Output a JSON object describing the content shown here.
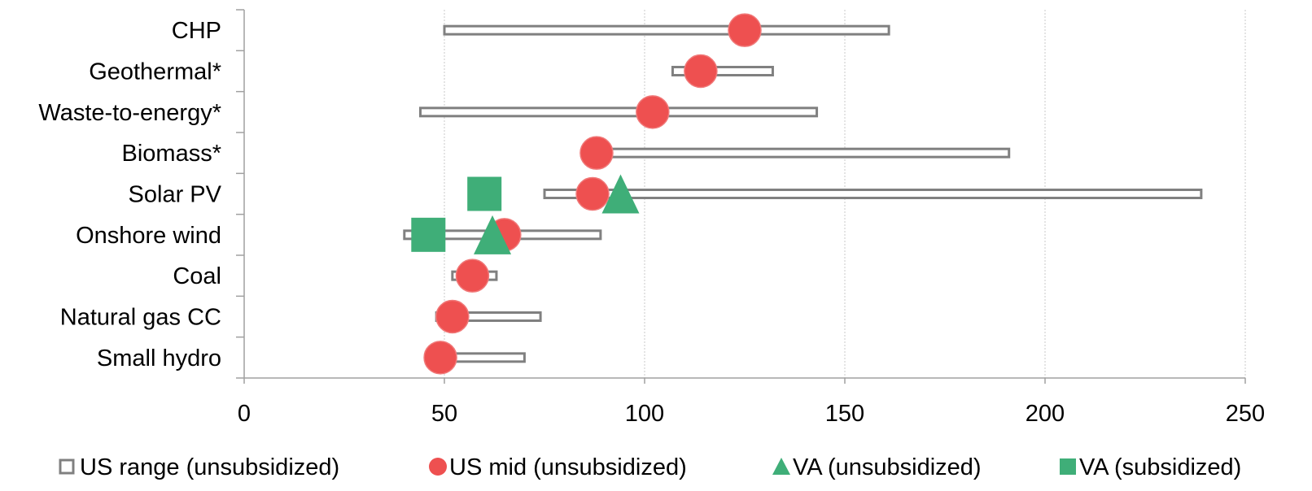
{
  "chart_data": {
    "type": "scatter",
    "categories": [
      "CHP",
      "Geothermal*",
      "Waste-to-energy*",
      "Biomass*",
      "Solar PV",
      "Onshore wind",
      "Coal",
      "Natural gas CC",
      "Small hydro"
    ],
    "x_ticks": [
      0,
      50,
      100,
      150,
      200,
      250
    ],
    "xlim": [
      0,
      250
    ],
    "grid": "vertical",
    "legend_position": "bottom",
    "series": [
      {
        "name": "US range (unsubsidized)",
        "kind": "range",
        "color": "#808080",
        "low": [
          50,
          107,
          44,
          89,
          75,
          40,
          52,
          48,
          49
        ],
        "high": [
          161,
          132,
          143,
          191,
          239,
          89,
          63,
          74,
          70
        ]
      },
      {
        "name": "US mid (unsubsidized)",
        "kind": "circle",
        "color": "#ee5050",
        "values": [
          125,
          114,
          102,
          88,
          87,
          65,
          57,
          52,
          49
        ]
      },
      {
        "name": "VA (unsubsidized)",
        "kind": "triangle",
        "color": "#3fae78",
        "values": [
          null,
          null,
          null,
          null,
          94,
          62,
          null,
          null,
          null
        ]
      },
      {
        "name": "VA (subsidized)",
        "kind": "square",
        "color": "#3fae78",
        "values": [
          null,
          null,
          null,
          null,
          60,
          46,
          null,
          null,
          null
        ]
      }
    ]
  }
}
